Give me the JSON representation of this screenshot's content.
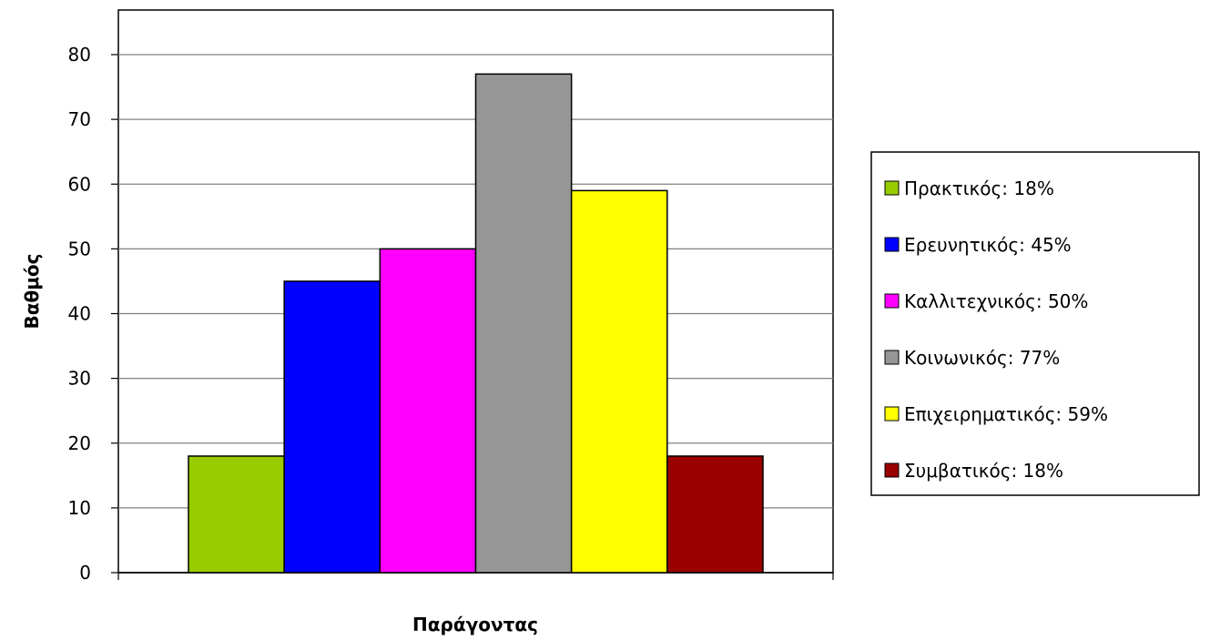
{
  "chart_data": {
    "type": "bar",
    "xlabel": "Παράγοντας",
    "ylabel": "Βαθμός",
    "ylim": [
      0,
      80
    ],
    "yticks": [
      0,
      10,
      20,
      30,
      40,
      50,
      60,
      70,
      80
    ],
    "grid": true,
    "legend_position": "right",
    "series": [
      {
        "name": "Πρακτικός: 18%",
        "value": 18,
        "color": "#99cc00"
      },
      {
        "name": "Ερευνητικός: 45%",
        "value": 45,
        "color": "#0000ff"
      },
      {
        "name": "Καλλιτεχνικός: 50%",
        "value": 50,
        "color": "#ff00ff"
      },
      {
        "name": "Κοινωνικός: 77%",
        "value": 77,
        "color": "#969696"
      },
      {
        "name": "Επιχειρηματικός: 59%",
        "value": 59,
        "color": "#ffff00"
      },
      {
        "name": "Συμβατικός: 18%",
        "value": 18,
        "color": "#990000"
      }
    ]
  }
}
